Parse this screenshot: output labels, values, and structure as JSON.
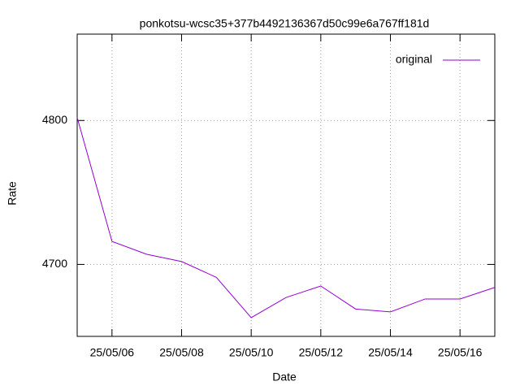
{
  "chart_data": {
    "type": "line",
    "title": "ponkotsu-wcsc35+377b4492136367d50c99e6a767ff181d",
    "x_label": "Date",
    "y_label": "Rate",
    "x": [
      "25/05/05",
      "25/05/06",
      "25/05/07",
      "25/05/08",
      "25/05/09",
      "25/05/10",
      "25/05/11",
      "25/05/12",
      "25/05/13",
      "25/05/14",
      "25/05/15",
      "25/05/16",
      "25/05/17"
    ],
    "series": [
      {
        "name": "original",
        "color": "#9400d3",
        "values": [
          4802,
          4716,
          4707,
          4702,
          4691,
          4663,
          4677,
          4685,
          4669,
          4667,
          4676,
          4676,
          4684
        ]
      }
    ],
    "xlim": [
      "25/05/05",
      "25/05/17"
    ],
    "xticks": [
      "25/05/06",
      "25/05/08",
      "25/05/10",
      "25/05/12",
      "25/05/14",
      "25/05/16"
    ],
    "ylim": [
      4650,
      4860
    ],
    "yticks": [
      4700,
      4800
    ],
    "grid": true,
    "legend": "top-right"
  }
}
